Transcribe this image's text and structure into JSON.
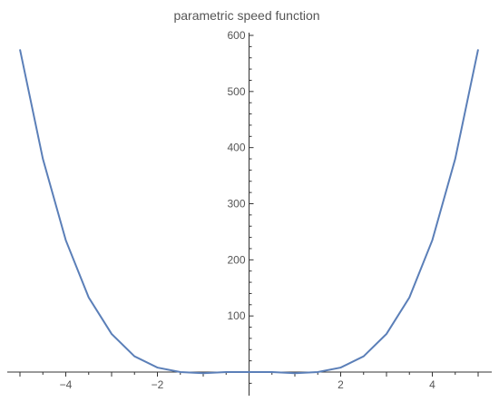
{
  "chart_data": {
    "type": "line",
    "title": "parametric speed function",
    "xlabel": "",
    "ylabel": "",
    "xlim": [
      -5,
      5
    ],
    "ylim": [
      0,
      600
    ],
    "x_ticks": [
      -4,
      -2,
      2,
      4
    ],
    "y_ticks": [
      100,
      200,
      300,
      400,
      500,
      600
    ],
    "x_tick_labels": [
      "-4",
      "-2",
      "2",
      "4"
    ],
    "y_tick_labels": [
      "100",
      "200",
      "300",
      "400",
      "500",
      "600"
    ],
    "grid": false,
    "legend": "none",
    "series": [
      {
        "color": "#5b7fb8",
        "x": [
          -5,
          -4.5,
          -4,
          -3.5,
          -3,
          -2.5,
          -2,
          -1.5,
          -1,
          -0.5,
          0,
          0.5,
          1,
          1.5,
          2,
          2.5,
          3,
          3.5,
          4,
          4.5,
          5
        ],
        "y": [
          575,
          380,
          235,
          133,
          68,
          28,
          8,
          0,
          -2,
          0,
          0,
          0,
          -2,
          0,
          8,
          28,
          68,
          133,
          235,
          380,
          575
        ]
      }
    ]
  }
}
